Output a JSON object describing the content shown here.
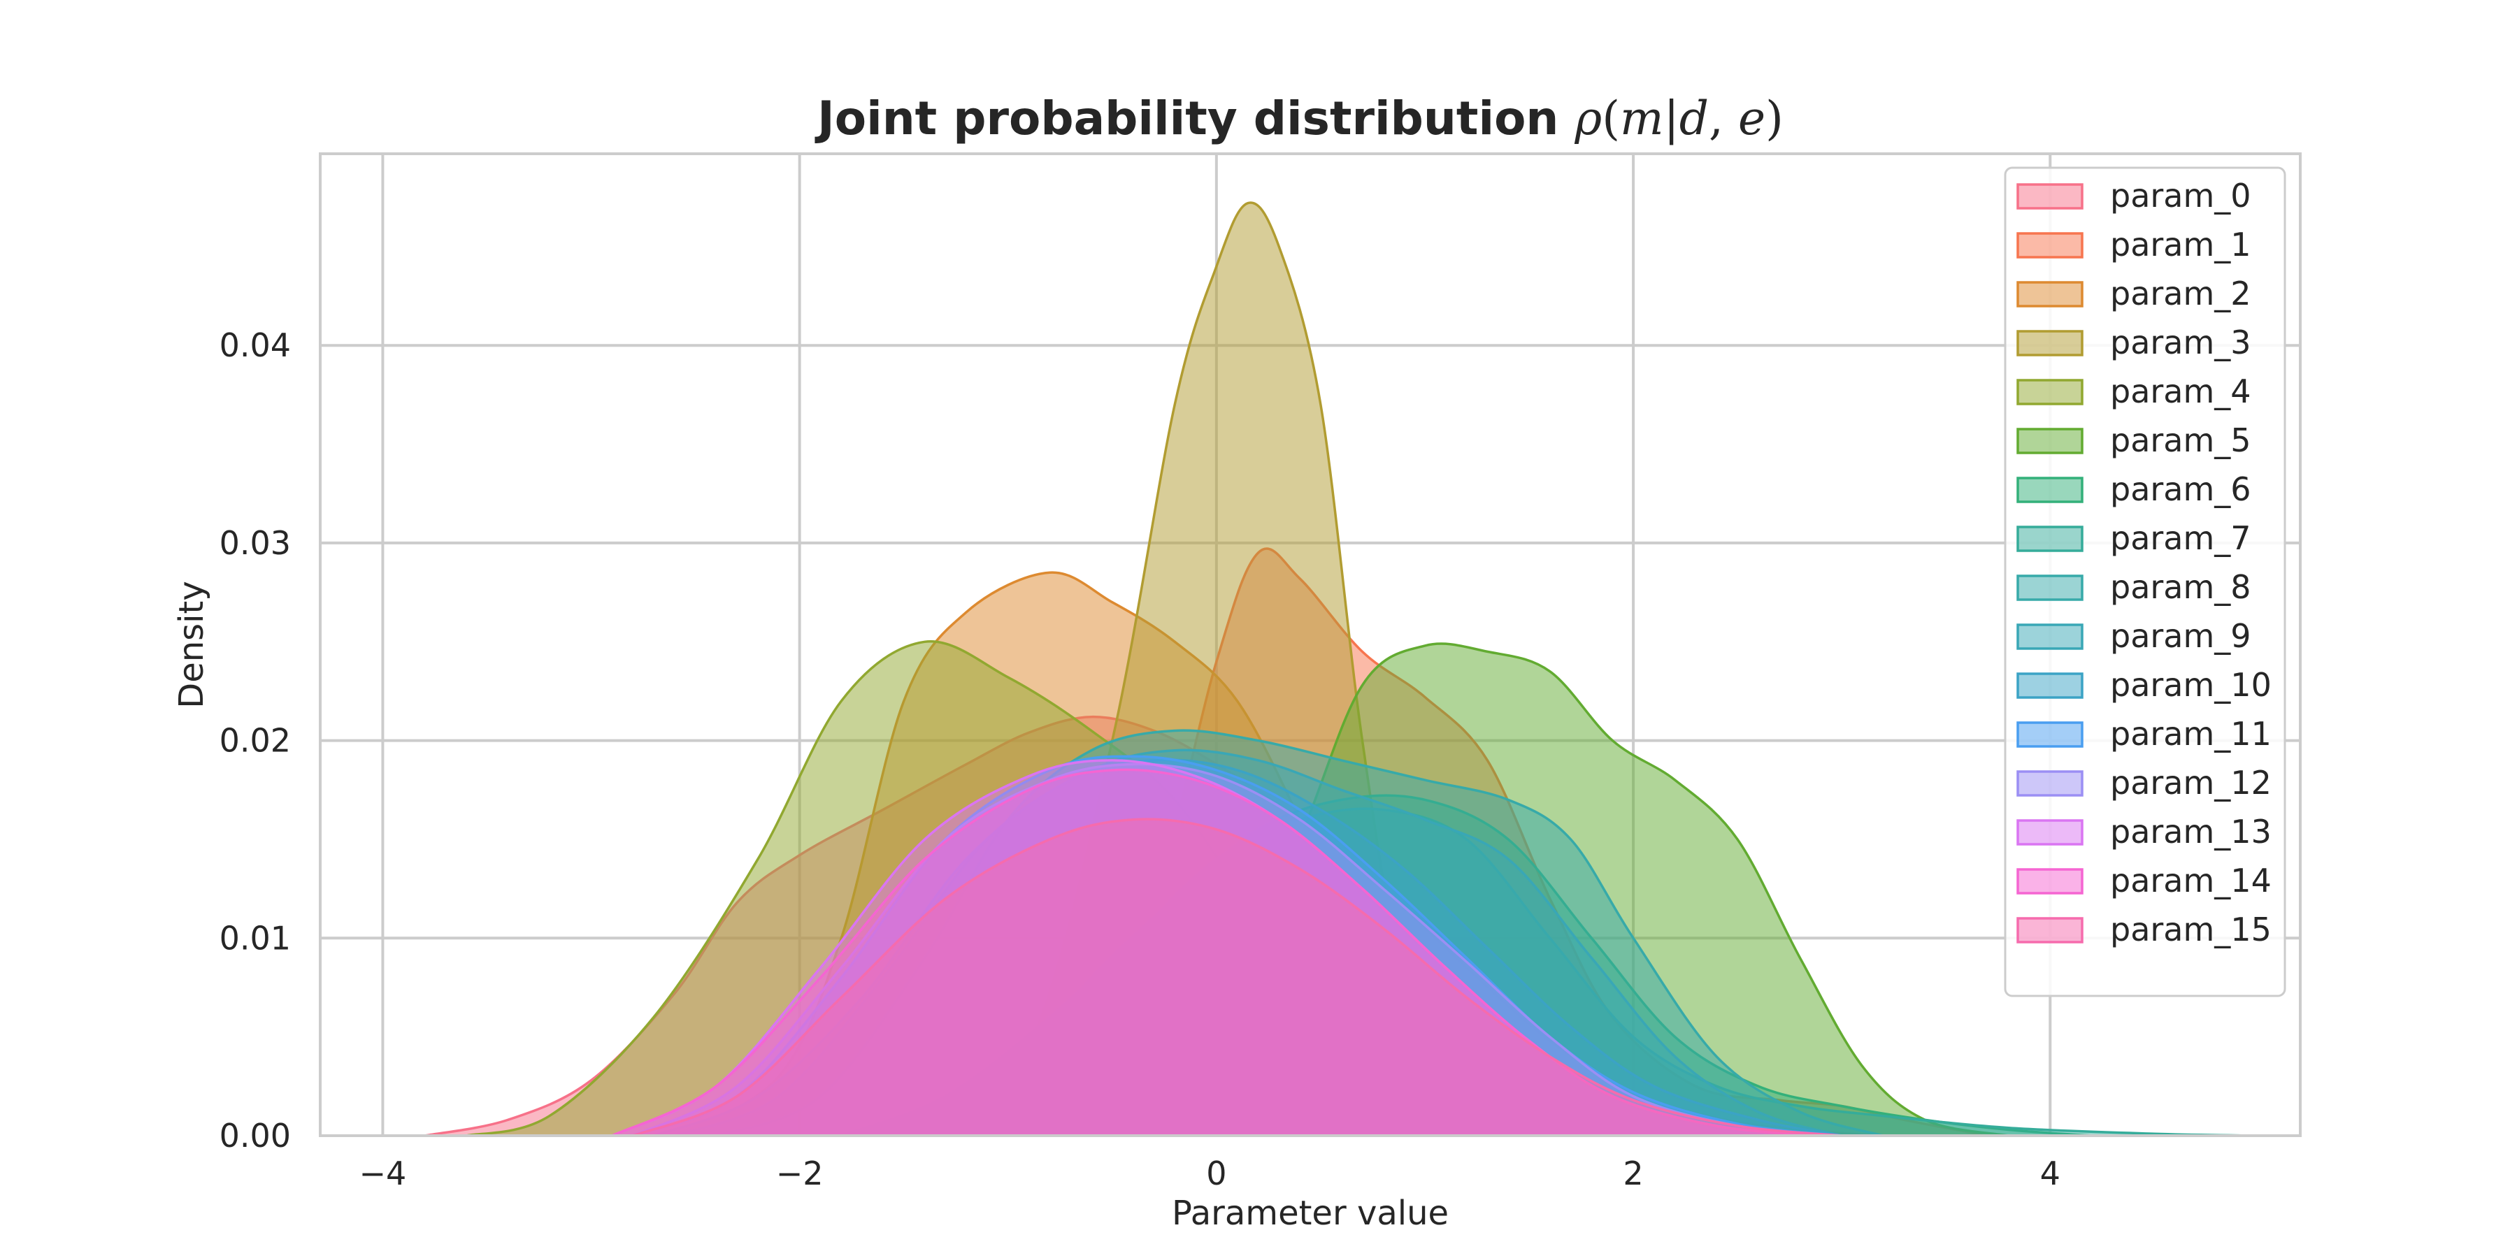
{
  "chart_data": {
    "type": "area",
    "title": "Joint probability distribution ",
    "title_math": {
      "rho": "ρ",
      "open": "(",
      "m": "m",
      "bar": "|",
      "d": "d",
      "comma": ", ",
      "e": "e",
      "close": ")"
    },
    "xlabel": "Parameter value",
    "ylabel": "Density",
    "xlim": [
      -4.3,
      5.2
    ],
    "ylim": [
      0,
      0.0497
    ],
    "x_ticks": [
      -4,
      -2,
      0,
      2,
      4
    ],
    "x_tick_labels": [
      "−4",
      "−2",
      "0",
      "2",
      "4"
    ],
    "y_ticks": [
      0.0,
      0.01,
      0.02,
      0.03,
      0.04
    ],
    "y_tick_labels": [
      "0.00",
      "0.01",
      "0.02",
      "0.03",
      "0.04"
    ],
    "grid": true,
    "legend_position": "top-right",
    "series": [
      {
        "name": "param_0",
        "color": "#f77189",
        "points": [
          [
            -3.8,
            0
          ],
          [
            -3.4,
            0.0008
          ],
          [
            -3.0,
            0.0028
          ],
          [
            -2.6,
            0.0072
          ],
          [
            -2.3,
            0.0118
          ],
          [
            -2.0,
            0.0142
          ],
          [
            -1.6,
            0.0165
          ],
          [
            -1.2,
            0.0188
          ],
          [
            -0.9,
            0.0204
          ],
          [
            -0.6,
            0.0212
          ],
          [
            -0.3,
            0.0205
          ],
          [
            0.0,
            0.0188
          ],
          [
            0.4,
            0.016
          ],
          [
            0.8,
            0.0125
          ],
          [
            1.2,
            0.0085
          ],
          [
            1.6,
            0.0048
          ],
          [
            2.0,
            0.0022
          ],
          [
            2.4,
            0.0009
          ],
          [
            2.8,
            0.0003
          ],
          [
            3.2,
            0
          ]
        ]
      },
      {
        "name": "param_1",
        "color": "#f7754f",
        "points": [
          [
            -1.2,
            0
          ],
          [
            -0.7,
            0.003
          ],
          [
            -0.3,
            0.012
          ],
          [
            0.0,
            0.024
          ],
          [
            0.2,
            0.0295
          ],
          [
            0.4,
            0.0282
          ],
          [
            0.7,
            0.0245
          ],
          [
            1.0,
            0.0222
          ],
          [
            1.3,
            0.019
          ],
          [
            1.6,
            0.012
          ],
          [
            1.9,
            0.006
          ],
          [
            2.3,
            0.0025
          ],
          [
            2.7,
            0.0018
          ],
          [
            3.0,
            0.0015
          ],
          [
            3.3,
            0.0008
          ],
          [
            3.7,
            0
          ]
        ]
      },
      {
        "name": "param_2",
        "color": "#dd8a30",
        "points": [
          [
            -2.6,
            0
          ],
          [
            -2.1,
            0.003
          ],
          [
            -1.8,
            0.01
          ],
          [
            -1.5,
            0.022
          ],
          [
            -1.2,
            0.0265
          ],
          [
            -0.8,
            0.0285
          ],
          [
            -0.5,
            0.027
          ],
          [
            -0.2,
            0.025
          ],
          [
            0.1,
            0.022
          ],
          [
            0.4,
            0.016
          ],
          [
            0.7,
            0.009
          ],
          [
            1.0,
            0.0045
          ],
          [
            1.4,
            0.002
          ],
          [
            1.8,
            0.0008
          ],
          [
            2.2,
            0
          ]
        ]
      },
      {
        "name": "param_3",
        "color": "#b19c31",
        "points": [
          [
            -1.4,
            0
          ],
          [
            -0.9,
            0.0045
          ],
          [
            -0.5,
            0.02
          ],
          [
            -0.2,
            0.037
          ],
          [
            0.0,
            0.044
          ],
          [
            0.15,
            0.0472
          ],
          [
            0.3,
            0.045
          ],
          [
            0.5,
            0.037
          ],
          [
            0.7,
            0.02
          ],
          [
            0.9,
            0.008
          ],
          [
            1.2,
            0.002
          ],
          [
            1.6,
            0
          ]
        ]
      },
      {
        "name": "param_4",
        "color": "#91a830",
        "points": [
          [
            -3.6,
            0
          ],
          [
            -3.2,
            0.001
          ],
          [
            -2.7,
            0.006
          ],
          [
            -2.2,
            0.014
          ],
          [
            -1.8,
            0.022
          ],
          [
            -1.4,
            0.025
          ],
          [
            -1.0,
            0.0232
          ],
          [
            -0.6,
            0.0205
          ],
          [
            -0.2,
            0.017
          ],
          [
            0.2,
            0.011
          ],
          [
            0.6,
            0.0055
          ],
          [
            1.0,
            0.0022
          ],
          [
            1.5,
            0.0008
          ],
          [
            2.0,
            0
          ]
        ]
      },
      {
        "name": "param_5",
        "color": "#62ab31",
        "points": [
          [
            -0.5,
            0
          ],
          [
            0.0,
            0.005
          ],
          [
            0.4,
            0.015
          ],
          [
            0.7,
            0.0228
          ],
          [
            1.0,
            0.0248
          ],
          [
            1.3,
            0.0245
          ],
          [
            1.6,
            0.0235
          ],
          [
            1.9,
            0.02
          ],
          [
            2.2,
            0.018
          ],
          [
            2.5,
            0.015
          ],
          [
            2.8,
            0.009
          ],
          [
            3.1,
            0.0035
          ],
          [
            3.4,
            0.0008
          ],
          [
            3.8,
            0
          ]
        ]
      },
      {
        "name": "param_6",
        "color": "#33b07a",
        "points": [
          [
            -1.5,
            0
          ],
          [
            -1.0,
            0.003
          ],
          [
            -0.6,
            0.008
          ],
          [
            -0.2,
            0.012
          ],
          [
            0.2,
            0.0155
          ],
          [
            0.6,
            0.017
          ],
          [
            1.0,
            0.017
          ],
          [
            1.4,
            0.015
          ],
          [
            1.8,
            0.01
          ],
          [
            2.2,
            0.005
          ],
          [
            2.6,
            0.0025
          ],
          [
            3.0,
            0.0015
          ],
          [
            3.4,
            0.0008
          ],
          [
            3.8,
            0.0003
          ],
          [
            4.2,
            0
          ]
        ]
      },
      {
        "name": "param_7",
        "color": "#35ac9a",
        "points": [
          [
            -1.8,
            0
          ],
          [
            -1.3,
            0.002
          ],
          [
            -0.8,
            0.006
          ],
          [
            -0.4,
            0.01
          ],
          [
            0.0,
            0.014
          ],
          [
            0.4,
            0.016
          ],
          [
            0.8,
            0.0165
          ],
          [
            1.2,
            0.015
          ],
          [
            1.6,
            0.01
          ],
          [
            2.0,
            0.005
          ],
          [
            2.4,
            0.0025
          ],
          [
            2.8,
            0.0015
          ],
          [
            3.2,
            0.001
          ],
          [
            3.8,
            0.0004
          ],
          [
            4.5,
            0.0001
          ],
          [
            5.0,
            0
          ]
        ]
      },
      {
        "name": "param_8",
        "color": "#37aaa9",
        "points": [
          [
            -2.4,
            0
          ],
          [
            -1.9,
            0.002
          ],
          [
            -1.4,
            0.009
          ],
          [
            -1.0,
            0.016
          ],
          [
            -0.6,
            0.0195
          ],
          [
            -0.2,
            0.0205
          ],
          [
            0.2,
            0.02
          ],
          [
            0.6,
            0.019
          ],
          [
            1.0,
            0.018
          ],
          [
            1.4,
            0.017
          ],
          [
            1.7,
            0.015
          ],
          [
            2.0,
            0.01
          ],
          [
            2.4,
            0.004
          ],
          [
            2.8,
            0.0012
          ],
          [
            3.2,
            0
          ]
        ]
      },
      {
        "name": "param_9",
        "color": "#39a7b6",
        "points": [
          [
            -2.6,
            0
          ],
          [
            -2.1,
            0.002
          ],
          [
            -1.6,
            0.008
          ],
          [
            -1.1,
            0.015
          ],
          [
            -0.6,
            0.0185
          ],
          [
            -0.2,
            0.0195
          ],
          [
            0.2,
            0.019
          ],
          [
            0.6,
            0.0175
          ],
          [
            1.0,
            0.016
          ],
          [
            1.4,
            0.014
          ],
          [
            1.8,
            0.009
          ],
          [
            2.2,
            0.004
          ],
          [
            2.6,
            0.0012
          ],
          [
            3.0,
            0
          ]
        ]
      },
      {
        "name": "param_10",
        "color": "#3ba3c5",
        "points": [
          [
            -2.7,
            0
          ],
          [
            -2.2,
            0.002
          ],
          [
            -1.7,
            0.007
          ],
          [
            -1.2,
            0.014
          ],
          [
            -0.7,
            0.018
          ],
          [
            -0.3,
            0.019
          ],
          [
            0.1,
            0.0185
          ],
          [
            0.5,
            0.0165
          ],
          [
            0.9,
            0.0135
          ],
          [
            1.3,
            0.0095
          ],
          [
            1.7,
            0.0055
          ],
          [
            2.1,
            0.0025
          ],
          [
            2.6,
            0.0008
          ],
          [
            3.0,
            0
          ]
        ]
      },
      {
        "name": "param_11",
        "color": "#4a9ef0",
        "points": [
          [
            -2.8,
            0
          ],
          [
            -2.3,
            0.002
          ],
          [
            -1.8,
            0.008
          ],
          [
            -1.3,
            0.015
          ],
          [
            -0.8,
            0.0185
          ],
          [
            -0.4,
            0.0192
          ],
          [
            0.0,
            0.0185
          ],
          [
            0.4,
            0.0165
          ],
          [
            0.8,
            0.013
          ],
          [
            1.2,
            0.009
          ],
          [
            1.6,
            0.005
          ],
          [
            2.0,
            0.0022
          ],
          [
            2.5,
            0.0006
          ],
          [
            3.0,
            0
          ]
        ]
      },
      {
        "name": "param_12",
        "color": "#9b8ff4",
        "points": [
          [
            -2.8,
            0
          ],
          [
            -2.3,
            0.0025
          ],
          [
            -1.8,
            0.0085
          ],
          [
            -1.3,
            0.015
          ],
          [
            -0.8,
            0.018
          ],
          [
            -0.4,
            0.0188
          ],
          [
            0.0,
            0.0182
          ],
          [
            0.4,
            0.016
          ],
          [
            0.8,
            0.0125
          ],
          [
            1.2,
            0.0088
          ],
          [
            1.6,
            0.005
          ],
          [
            2.0,
            0.002
          ],
          [
            2.5,
            0.0005
          ],
          [
            3.0,
            0
          ]
        ]
      },
      {
        "name": "param_13",
        "color": "#da75f2",
        "points": [
          [
            -2.9,
            0
          ],
          [
            -2.4,
            0.0025
          ],
          [
            -1.9,
            0.0085
          ],
          [
            -1.4,
            0.015
          ],
          [
            -0.9,
            0.0182
          ],
          [
            -0.5,
            0.019
          ],
          [
            -0.1,
            0.0182
          ],
          [
            0.3,
            0.016
          ],
          [
            0.7,
            0.0125
          ],
          [
            1.1,
            0.0085
          ],
          [
            1.5,
            0.0048
          ],
          [
            1.9,
            0.002
          ],
          [
            2.4,
            0.0005
          ],
          [
            2.9,
            0
          ]
        ]
      },
      {
        "name": "param_14",
        "color": "#f565d2",
        "points": [
          [
            -2.9,
            0
          ],
          [
            -2.4,
            0.0025
          ],
          [
            -1.9,
            0.008
          ],
          [
            -1.4,
            0.014
          ],
          [
            -0.9,
            0.0175
          ],
          [
            -0.5,
            0.0185
          ],
          [
            -0.1,
            0.018
          ],
          [
            0.3,
            0.016
          ],
          [
            0.7,
            0.0125
          ],
          [
            1.1,
            0.0085
          ],
          [
            1.5,
            0.0048
          ],
          [
            1.9,
            0.002
          ],
          [
            2.4,
            0.0005
          ],
          [
            2.9,
            0
          ]
        ]
      },
      {
        "name": "param_15",
        "color": "#f66bad",
        "points": [
          [
            -2.8,
            0
          ],
          [
            -2.3,
            0.002
          ],
          [
            -1.8,
            0.007
          ],
          [
            -1.3,
            0.012
          ],
          [
            -0.8,
            0.015
          ],
          [
            -0.4,
            0.016
          ],
          [
            0.0,
            0.0155
          ],
          [
            0.4,
            0.0135
          ],
          [
            0.8,
            0.0105
          ],
          [
            1.2,
            0.007
          ],
          [
            1.6,
            0.004
          ],
          [
            2.0,
            0.0018
          ],
          [
            2.5,
            0.0005
          ],
          [
            3.0,
            0
          ]
        ]
      }
    ]
  }
}
